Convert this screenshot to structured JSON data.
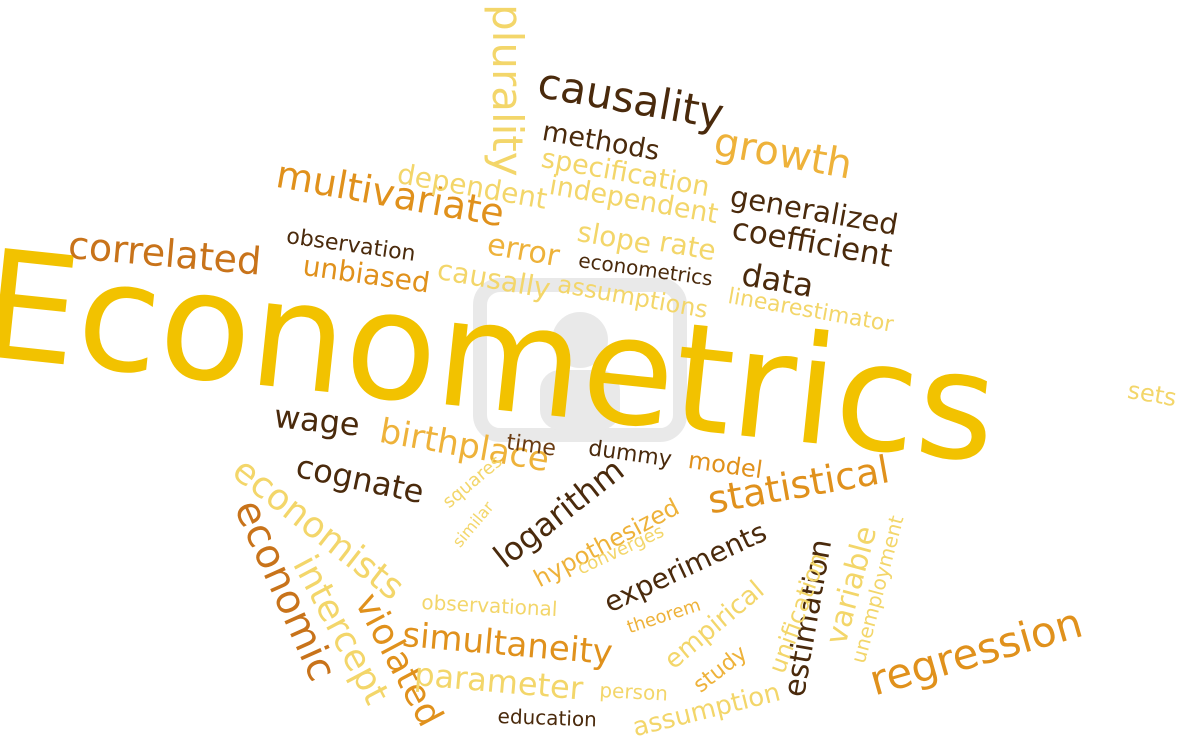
{
  "image": {
    "description_words": [
      {
        "text": "Econometrics",
        "cls": "c-yellow"
      },
      {
        "text": "plurality",
        "cls": "c-lyellow"
      },
      {
        "text": "causality",
        "cls": "c-dbrown"
      },
      {
        "text": "methods",
        "cls": "c-dbrown"
      },
      {
        "text": "growth",
        "cls": "c-lorange"
      },
      {
        "text": "specification",
        "cls": "c-lyellow"
      },
      {
        "text": "multivariate",
        "cls": "c-orange"
      },
      {
        "text": "dependent",
        "cls": "c-lyellow"
      },
      {
        "text": "independent",
        "cls": "c-lyellow"
      },
      {
        "text": "generalized",
        "cls": "c-dbrown"
      },
      {
        "text": "correlated",
        "cls": "c-rust"
      },
      {
        "text": "observation",
        "cls": "c-dbrown"
      },
      {
        "text": "error",
        "cls": "c-lorange"
      },
      {
        "text": "slope",
        "cls": "c-lyellow"
      },
      {
        "text": "rate",
        "cls": "c-lyellow"
      },
      {
        "text": "coefficient",
        "cls": "c-dbrown"
      },
      {
        "text": "unbiased",
        "cls": "c-orange"
      },
      {
        "text": "causally",
        "cls": "c-lyellow"
      },
      {
        "text": "econometrics",
        "cls": "c-dbrown"
      },
      {
        "text": "data",
        "cls": "c-dbrown"
      },
      {
        "text": "assumptions",
        "cls": "c-lyellow"
      },
      {
        "text": "linearestimator",
        "cls": "c-lyellow"
      },
      {
        "text": "sets",
        "cls": "c-lyellow"
      },
      {
        "text": "wage",
        "cls": "c-dbrown"
      },
      {
        "text": "birthplace",
        "cls": "c-lorange"
      },
      {
        "text": "time",
        "cls": "c-brown"
      },
      {
        "text": "dummy",
        "cls": "c-dbrown"
      },
      {
        "text": "model",
        "cls": "c-orange"
      },
      {
        "text": "cognate",
        "cls": "c-dbrown"
      },
      {
        "text": "economists",
        "cls": "c-lyellow"
      },
      {
        "text": "statistical",
        "cls": "c-orange"
      },
      {
        "text": "economic",
        "cls": "c-rust"
      },
      {
        "text": "squares",
        "cls": "c-lyellow"
      },
      {
        "text": "similar",
        "cls": "c-lyellow"
      },
      {
        "text": "logarithm",
        "cls": "c-dbrown"
      },
      {
        "text": "hypothesized",
        "cls": "c-lorange"
      },
      {
        "text": "converges",
        "cls": "c-lyellow"
      },
      {
        "text": "experiments",
        "cls": "c-dbrown"
      },
      {
        "text": "estimation",
        "cls": "c-dbrown"
      },
      {
        "text": "variable",
        "cls": "c-lyellow"
      },
      {
        "text": "unemployment",
        "cls": "c-lyellow"
      },
      {
        "text": "intercept",
        "cls": "c-lyellow"
      },
      {
        "text": "violated",
        "cls": "c-orange"
      },
      {
        "text": "observational",
        "cls": "c-lyellow"
      },
      {
        "text": "theorem",
        "cls": "c-lorange"
      },
      {
        "text": "empirical",
        "cls": "c-lyellow"
      },
      {
        "text": "unification",
        "cls": "c-lyellow"
      },
      {
        "text": "simultaneity",
        "cls": "c-orange"
      },
      {
        "text": "study",
        "cls": "c-lorange"
      },
      {
        "text": "regression",
        "cls": "c-orange"
      },
      {
        "text": "parameter",
        "cls": "c-lyellow"
      },
      {
        "text": "person",
        "cls": "c-lyellow"
      },
      {
        "text": "assumption",
        "cls": "c-lyellow"
      },
      {
        "text": "education",
        "cls": "c-dbrown"
      }
    ]
  }
}
